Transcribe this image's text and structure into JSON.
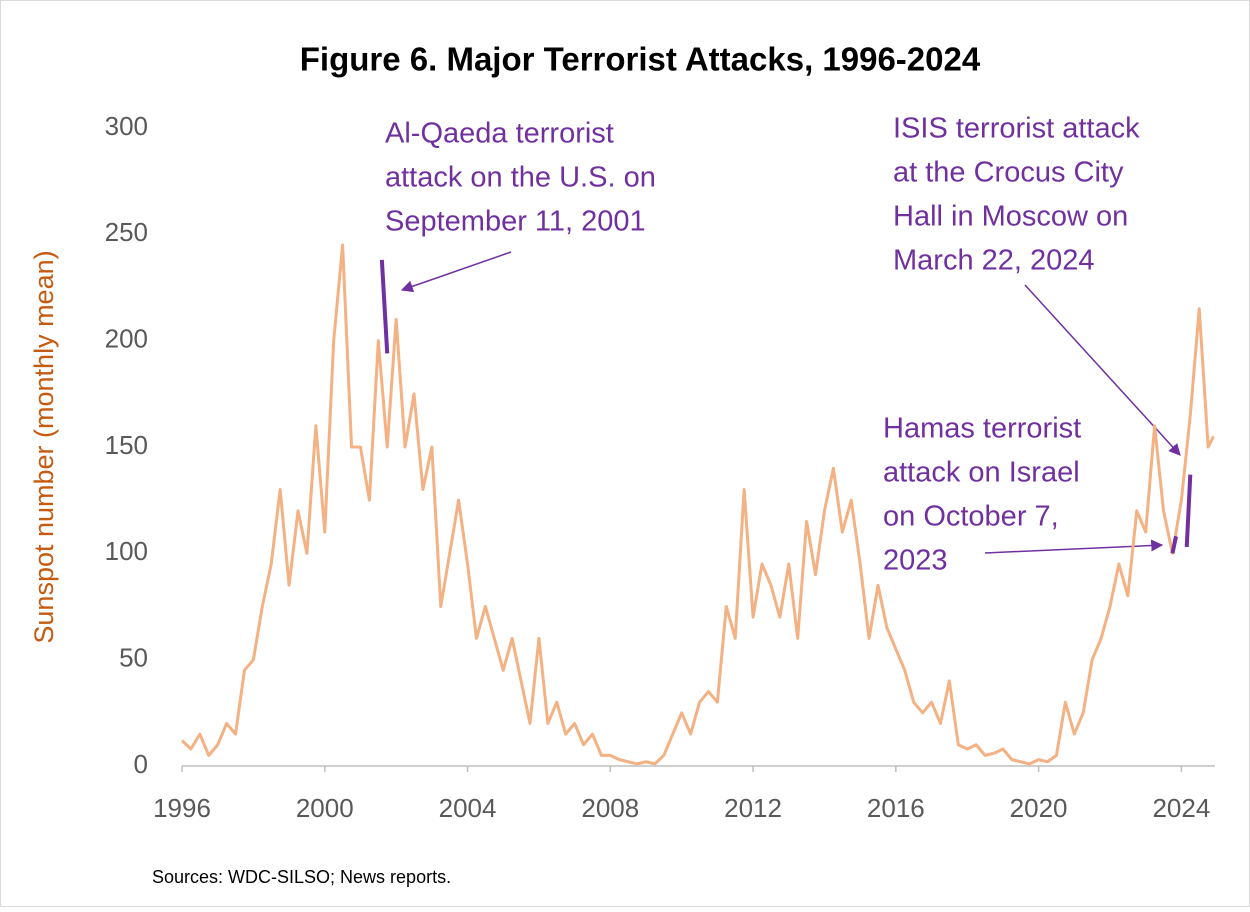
{
  "chart_data": {
    "type": "line",
    "title": "Figure 6. Major Terrorist Attacks, 1996-2024",
    "y_label": "Sunspot number (monthly mean)",
    "source": "Sources:  WDC-SILSO; News reports.",
    "xlim": [
      1996,
      2024.9
    ],
    "xticks": [
      1996,
      2000,
      2004,
      2008,
      2012,
      2016,
      2020,
      2024
    ],
    "ylim": [
      0,
      300
    ],
    "yticks": [
      0,
      50,
      100,
      150,
      200,
      250,
      300
    ],
    "grid": false,
    "series": [
      {
        "color": "#f4b183",
        "x": [
          1996,
          1996.25,
          1996.5,
          1996.75,
          1997,
          1997.25,
          1997.5,
          1997.75,
          1998,
          1998.25,
          1998.5,
          1998.75,
          1999,
          1999.25,
          1999.5,
          1999.75,
          2000,
          2000.25,
          2000.5,
          2000.75,
          2001,
          2001.25,
          2001.5,
          2001.75,
          2002,
          2002.25,
          2002.5,
          2002.75,
          2003,
          2003.25,
          2003.5,
          2003.75,
          2004,
          2004.25,
          2004.5,
          2004.75,
          2005,
          2005.25,
          2005.5,
          2005.75,
          2006,
          2006.25,
          2006.5,
          2006.75,
          2007,
          2007.25,
          2007.5,
          2007.75,
          2008,
          2008.25,
          2008.5,
          2008.75,
          2009,
          2009.25,
          2009.5,
          2009.75,
          2010,
          2010.25,
          2010.5,
          2010.75,
          2011,
          2011.25,
          2011.5,
          2011.75,
          2012,
          2012.25,
          2012.5,
          2012.75,
          2013,
          2013.25,
          2013.5,
          2013.75,
          2014,
          2014.25,
          2014.5,
          2014.75,
          2015,
          2015.25,
          2015.5,
          2015.75,
          2016,
          2016.25,
          2016.5,
          2016.75,
          2017,
          2017.25,
          2017.5,
          2017.75,
          2018,
          2018.25,
          2018.5,
          2018.75,
          2019,
          2019.25,
          2019.5,
          2019.75,
          2020,
          2020.25,
          2020.5,
          2020.75,
          2021,
          2021.25,
          2021.5,
          2021.75,
          2022,
          2022.25,
          2022.5,
          2022.75,
          2023,
          2023.25,
          2023.5,
          2023.75,
          2024,
          2024.25,
          2024.5,
          2024.75,
          2024.9
        ],
        "values": [
          12,
          8,
          15,
          5,
          10,
          20,
          15,
          45,
          50,
          75,
          95,
          130,
          85,
          120,
          100,
          160,
          110,
          200,
          245,
          150,
          150,
          125,
          200,
          150,
          210,
          150,
          175,
          130,
          150,
          75,
          100,
          125,
          95,
          60,
          75,
          60,
          45,
          60,
          40,
          20,
          60,
          20,
          30,
          15,
          20,
          10,
          15,
          5,
          5,
          3,
          2,
          1,
          2,
          1,
          5,
          15,
          25,
          15,
          30,
          35,
          30,
          75,
          60,
          130,
          70,
          95,
          85,
          70,
          95,
          60,
          115,
          90,
          120,
          140,
          110,
          125,
          95,
          60,
          85,
          65,
          55,
          45,
          30,
          25,
          30,
          20,
          40,
          10,
          8,
          10,
          5,
          6,
          8,
          3,
          2,
          1,
          3,
          2,
          5,
          30,
          15,
          25,
          50,
          60,
          75,
          95,
          80,
          120,
          110,
          160,
          120,
          100,
          125,
          165,
          215,
          150,
          155
        ]
      },
      {
        "color": "#7030a0",
        "x": [
          2001.6,
          2001.75
        ],
        "values": [
          238,
          194
        ]
      },
      {
        "color": "#7030a0",
        "x": [
          2023.75,
          2023.85
        ],
        "values": [
          100,
          108
        ]
      },
      {
        "color": "#7030a0",
        "x": [
          2024.15,
          2024.25
        ],
        "values": [
          103,
          137
        ]
      }
    ],
    "annotations": [
      {
        "lines": [
          "Al-Qaeda terrorist",
          "attack on the U.S. on",
          "September 11, 2001"
        ]
      },
      {
        "lines": [
          "ISIS terrorist attack",
          "at the Crocus City",
          "Hall in Moscow on",
          "March 22, 2024"
        ]
      },
      {
        "lines": [
          "Hamas terrorist",
          "attack on Israel",
          "on October 7,",
          "2023"
        ]
      }
    ]
  }
}
